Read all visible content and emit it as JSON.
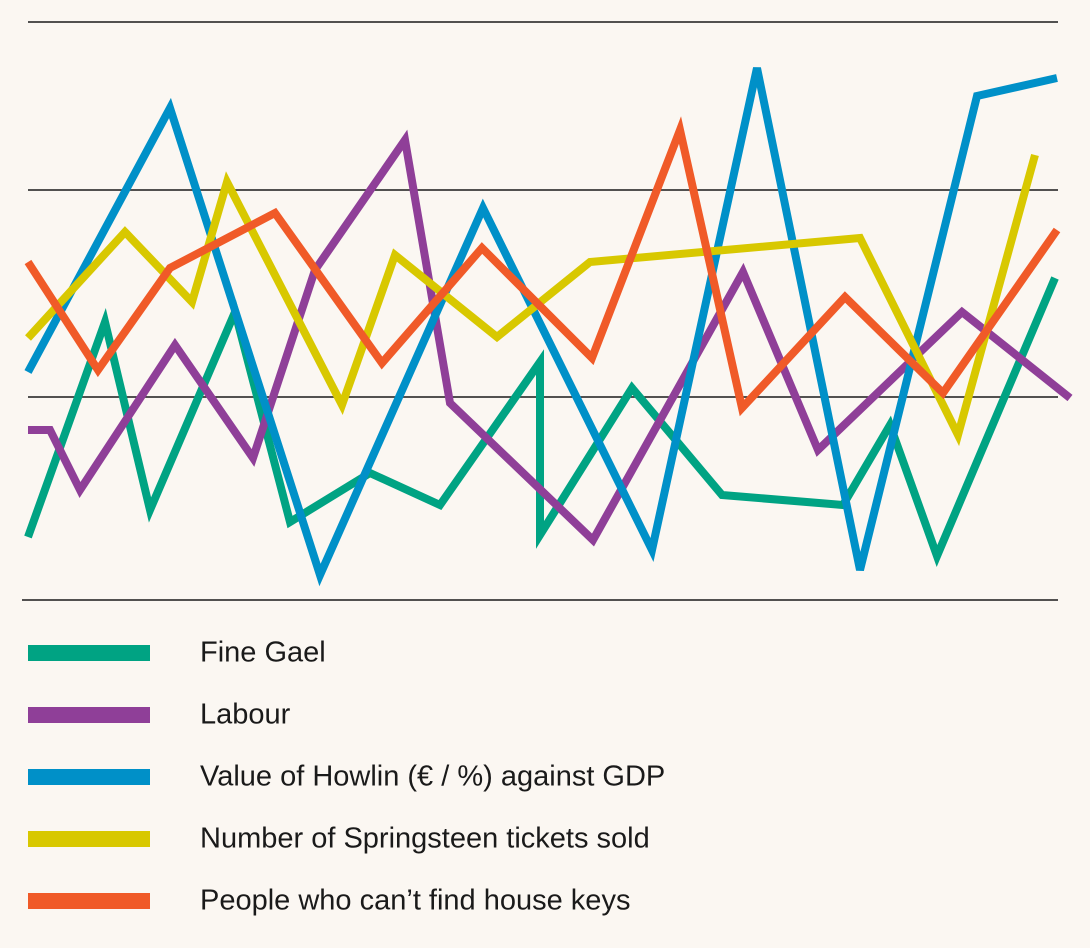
{
  "chart_data": {
    "type": "line",
    "xlim": [
      0,
      1090
    ],
    "ylim": [
      0,
      578
    ],
    "yticks": [
      0,
      203,
      410,
      578
    ],
    "grid": true,
    "series": [
      {
        "name": "Fine Gael",
        "color": "#00a383",
        "x": [
          28,
          105,
          150,
          235,
          290,
          370,
          440,
          540,
          540,
          632,
          722,
          843,
          890,
          937,
          1055
        ],
        "values": [
          63,
          278,
          90,
          288,
          78,
          127,
          95,
          238,
          65,
          212,
          105,
          95,
          175,
          44,
          322
        ]
      },
      {
        "name": "Labour",
        "color": "#8f3f98",
        "x": [
          28,
          50,
          80,
          175,
          253,
          315,
          405,
          450,
          593,
          743,
          818,
          962,
          1070
        ],
        "values": [
          170,
          170,
          110,
          255,
          142,
          330,
          460,
          197,
          60,
          328,
          150,
          288,
          202
        ]
      },
      {
        "name": "Value of Howlin (€ / %) against GDP",
        "color": "#0090c8",
        "x": [
          28,
          170,
          320,
          483,
          652,
          757,
          860,
          977,
          1057
        ],
        "values": [
          228,
          492,
          25,
          392,
          50,
          532,
          30,
          504,
          522
        ]
      },
      {
        "name": "Number of Springsteen tickets sold",
        "color": "#d8c800",
        "x": [
          28,
          125,
          192,
          227,
          342,
          395,
          497,
          590,
          860,
          958,
          1035
        ],
        "values": [
          262,
          368,
          298,
          418,
          195,
          345,
          263,
          338,
          362,
          165,
          445
        ]
      },
      {
        "name": "People who can’t find house keys",
        "color": "#f05a28",
        "x": [
          28,
          98,
          170,
          275,
          382,
          482,
          592,
          680,
          742,
          845,
          943,
          1057
        ],
        "values": [
          338,
          230,
          332,
          387,
          237,
          352,
          242,
          470,
          192,
          303,
          207,
          370
        ]
      }
    ]
  }
}
